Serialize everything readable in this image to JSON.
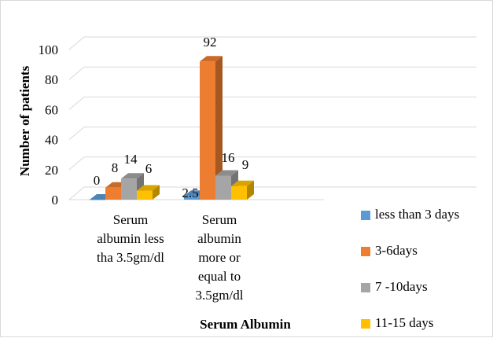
{
  "chart_data": {
    "type": "bar",
    "style": "3d-clustered",
    "categories": [
      [
        "Serum",
        "albumin less",
        "tha 3.5gm/dl"
      ],
      [
        "Serum",
        "albumin",
        "more or",
        "equal to",
        "3.5gm/dl"
      ]
    ],
    "series": [
      {
        "name": "less than 3 days",
        "color": "#5B9BD5",
        "values": [
          0,
          2.5
        ]
      },
      {
        "name": "3-6days",
        "color": "#ED7D31",
        "values": [
          8,
          92
        ]
      },
      {
        "name": "7 -10days",
        "color": "#A5A5A5",
        "values": [
          14,
          16
        ]
      },
      {
        "name": "11-15 days",
        "color": "#FFC000",
        "values": [
          6,
          9
        ]
      }
    ],
    "title": "",
    "xlabel": "Serum Albumin",
    "ylabel": "Number of patients",
    "ylim": [
      0,
      100
    ],
    "yticks": [
      0,
      20,
      40,
      60,
      80,
      100
    ],
    "grid": true,
    "legend_position": "right"
  }
}
